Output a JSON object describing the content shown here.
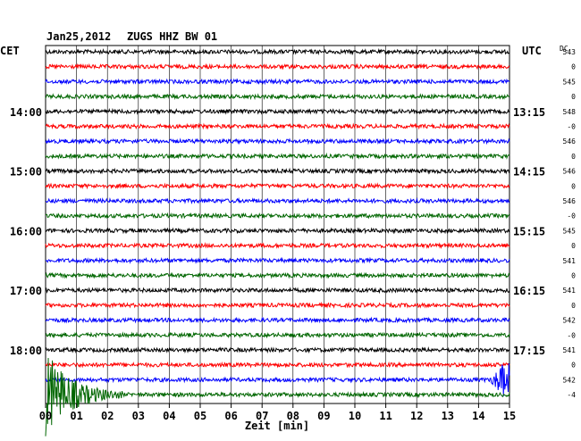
{
  "header": {
    "date": "Jan25,2012",
    "station": "ZUGS HHZ BW 01"
  },
  "left_zone": "CET",
  "right_zone": "UTC",
  "dc_header": "DC",
  "chart_data": {
    "type": "line",
    "title": "Jan25,2012   ZUGS HHZ BW 01",
    "xlabel": "Zeit [min]",
    "xlim": [
      0,
      15
    ],
    "x_ticks": [
      "00",
      "01",
      "02",
      "03",
      "04",
      "05",
      "06",
      "07",
      "08",
      "09",
      "10",
      "11",
      "12",
      "13",
      "14",
      "15"
    ],
    "trace_colors": [
      "#000000",
      "#ff0000",
      "#0000ff",
      "#006600"
    ],
    "hour_labels_left": [
      {
        "trace": 4,
        "label": "14:00"
      },
      {
        "trace": 8,
        "label": "15:00"
      },
      {
        "trace": 12,
        "label": "16:00"
      },
      {
        "trace": 16,
        "label": "17:00"
      },
      {
        "trace": 20,
        "label": "18:00"
      }
    ],
    "hour_labels_right": [
      {
        "trace": 4,
        "label": "13:15"
      },
      {
        "trace": 8,
        "label": "14:15"
      },
      {
        "trace": 12,
        "label": "15:15"
      },
      {
        "trace": 16,
        "label": "16:15"
      },
      {
        "trace": 20,
        "label": "17:15"
      }
    ],
    "dc_values": [
      "543",
      "0",
      "545",
      "0",
      "548",
      "-0",
      "546",
      "0",
      "546",
      "0",
      "546",
      "-0",
      "545",
      "0",
      "541",
      "0",
      "541",
      "0",
      "542",
      "-0",
      "541",
      "0",
      "542",
      "-4"
    ],
    "trace_count": 24,
    "events": [
      {
        "trace": 22,
        "start_min": 14.4,
        "end_min": 15.0
      },
      {
        "trace": 23,
        "start_min": 0.0,
        "end_min": 2.5
      }
    ]
  }
}
